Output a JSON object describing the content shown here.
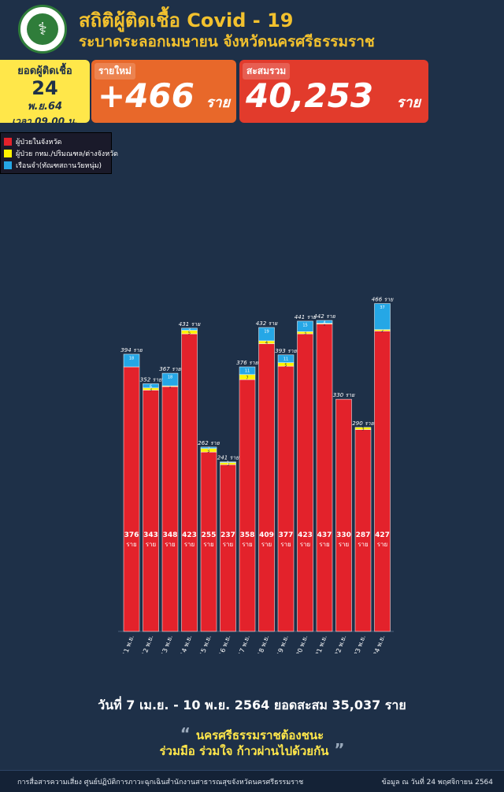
{
  "header": {
    "title": "สถิติผู้ติดเชื้อ Covid - 19",
    "subtitle": "ระบาดระลอกเมษายน จังหวัดนครศรีธรรมราช"
  },
  "date_box": {
    "label": "ยอดผู้ติดเชื้อ",
    "day": "24",
    "month": "พ.ย.64",
    "time": "เวลา 09.00 น."
  },
  "new_cases": {
    "tag": "รายใหม่",
    "value": "+466",
    "unit": "ราย"
  },
  "total_cases": {
    "tag": "สะสมรวม",
    "value": "40,253",
    "unit": "ราย"
  },
  "colors": {
    "local": "#e3222b",
    "outside": "#fff200",
    "prison": "#25a7e6"
  },
  "legend": [
    {
      "label": "ผู้ป่วยในจังหวัด",
      "color": "#e3222b"
    },
    {
      "label": "ผู้ป่วย กทม./ปริมณฑล/ต่างจังหวัด",
      "color": "#fff200"
    },
    {
      "label": "เรือนจำ(ทัณฑสถานวัยหนุ่ม)",
      "color": "#25a7e6"
    }
  ],
  "chart_data": {
    "type": "bar",
    "stacked": true,
    "unit": "ราย",
    "categories": [
      "11 พ.ย.",
      "12 พ.ย.",
      "13 พ.ย.",
      "14 พ.ย.",
      "15 พ.ย.",
      "16 พ.ย.",
      "17 พ.ย.",
      "18 พ.ย.",
      "19 พ.ย.",
      "20 พ.ย.",
      "21 พ.ย.",
      "22 พ.ย.",
      "23 พ.ย.",
      "24 พ.ย."
    ],
    "totals": [
      394,
      352,
      367,
      431,
      262,
      241,
      376,
      432,
      393,
      441,
      442,
      330,
      290,
      466
    ],
    "series": [
      {
        "values": [
          376,
          343,
          348,
          423,
          255,
          237,
          358,
          409,
          377,
          423,
          437,
          330,
          287,
          427
        ]
      },
      {
        "values": [
          0,
          3,
          1,
          5,
          5,
          3,
          7,
          4,
          5,
          3,
          1,
          0,
          3,
          2
        ]
      },
      {
        "values": [
          18,
          6,
          18,
          3,
          2,
          1,
          11,
          19,
          11,
          15,
          4,
          0,
          0,
          37
        ]
      }
    ],
    "ylim": [
      0,
      470
    ]
  },
  "summary": "วันที่ 7 เม.ย. - 10 พ.ย. 2564 ยอดสะสม 35,037 ราย",
  "slogan": {
    "line1": "นครศรีธรรมราชต้องชนะ",
    "line2": "ร่วมมือ ร่วมใจ ก้าวผ่านไปด้วยกัน"
  },
  "footer": {
    "left": "การสื่อสารความเสี่ยง ศูนย์ปฏิบัติการภาวะฉุกเฉินสำนักงานสาธารณสุขจังหวัดนครศรีธรรมราช",
    "right": "ข้อมูล ณ วันที่ 24 พฤศจิกายน 2564"
  }
}
